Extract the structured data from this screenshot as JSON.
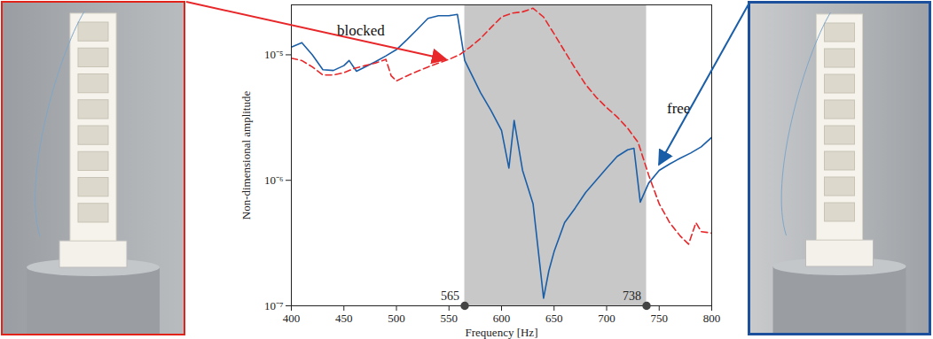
{
  "chart_data": {
    "type": "line",
    "xlabel": "Frequency [Hz]",
    "ylabel": "Non-dimensional amplitude",
    "xlim": [
      400,
      800
    ],
    "xticks": [
      400,
      450,
      500,
      550,
      600,
      650,
      700,
      750,
      800
    ],
    "ylim": [
      1e-07,
      2.5e-05
    ],
    "yticks": [
      {
        "value": 1e-07,
        "label": "10⁻⁷"
      },
      {
        "value": 1e-06,
        "label": "10⁻⁶"
      },
      {
        "value": 1e-05,
        "label": "10⁻⁵"
      }
    ],
    "log": "y",
    "grid": false,
    "band": [
      565,
      738
    ],
    "series": [
      {
        "name": "free",
        "color": "#1a5ea8",
        "line_style": "solid",
        "x": [
          400,
          410,
          420,
          430,
          440,
          450,
          455,
          462,
          470,
          480,
          490,
          500,
          510,
          520,
          530,
          540,
          550,
          558,
          565,
          580,
          590,
          600,
          607,
          612,
          620,
          630,
          640,
          645,
          650,
          660,
          670,
          680,
          690,
          700,
          710,
          720,
          726,
          732,
          740,
          750,
          760,
          770,
          780,
          790,
          800
        ],
        "values": [
          1.15e-05,
          1.25e-05,
          1e-05,
          7.6e-06,
          7.5e-06,
          8.2e-06,
          9e-06,
          7.4e-06,
          8e-06,
          8.8e-06,
          9.8e-06,
          1.1e-05,
          1.32e-05,
          1.6e-05,
          1.95e-05,
          2.05e-05,
          2.05e-05,
          2.1e-05,
          9e-06,
          5e-06,
          3.6e-06,
          2.5e-06,
          1.25e-06,
          3e-06,
          1.2e-06,
          6.5e-07,
          1.15e-07,
          1.9e-07,
          2.7e-07,
          4.6e-07,
          6e-07,
          8e-07,
          1e-06,
          1.25e-06,
          1.55e-06,
          1.75e-06,
          1.8e-06,
          6.7e-07,
          9.5e-07,
          1.2e-06,
          1.35e-06,
          1.5e-06,
          1.65e-06,
          1.85e-06,
          2.2e-06
        ]
      },
      {
        "name": "blocked",
        "color": "#e8272a",
        "line_style": "dashed",
        "x": [
          400,
          410,
          420,
          430,
          440,
          450,
          460,
          470,
          480,
          490,
          495,
          500,
          510,
          520,
          530,
          540,
          550,
          560,
          570,
          580,
          590,
          600,
          610,
          620,
          630,
          640,
          650,
          660,
          670,
          680,
          690,
          700,
          710,
          720,
          730,
          740,
          750,
          760,
          770,
          778,
          785,
          790,
          800
        ],
        "values": [
          9.4e-06,
          9e-06,
          8e-06,
          6.9e-06,
          6.9e-06,
          7.2e-06,
          7.8e-06,
          8.2e-06,
          8.6e-06,
          9.2e-06,
          6.8e-06,
          6.2e-06,
          6.8e-06,
          7.4e-06,
          8e-06,
          8.6e-06,
          9.2e-06,
          1e-05,
          1.15e-05,
          1.35e-05,
          1.65e-05,
          2e-05,
          2.15e-05,
          2.2e-05,
          2.35e-05,
          2e-05,
          1.47e-05,
          1.07e-05,
          7.8e-06,
          5.8e-06,
          4.6e-06,
          3.8e-06,
          3.2e-06,
          2.6e-06,
          2e-06,
          1.1e-06,
          6.5e-07,
          4.6e-07,
          3.6e-07,
          3.1e-07,
          4.6e-07,
          3.9e-07,
          3.8e-07
        ]
      }
    ]
  }
}
